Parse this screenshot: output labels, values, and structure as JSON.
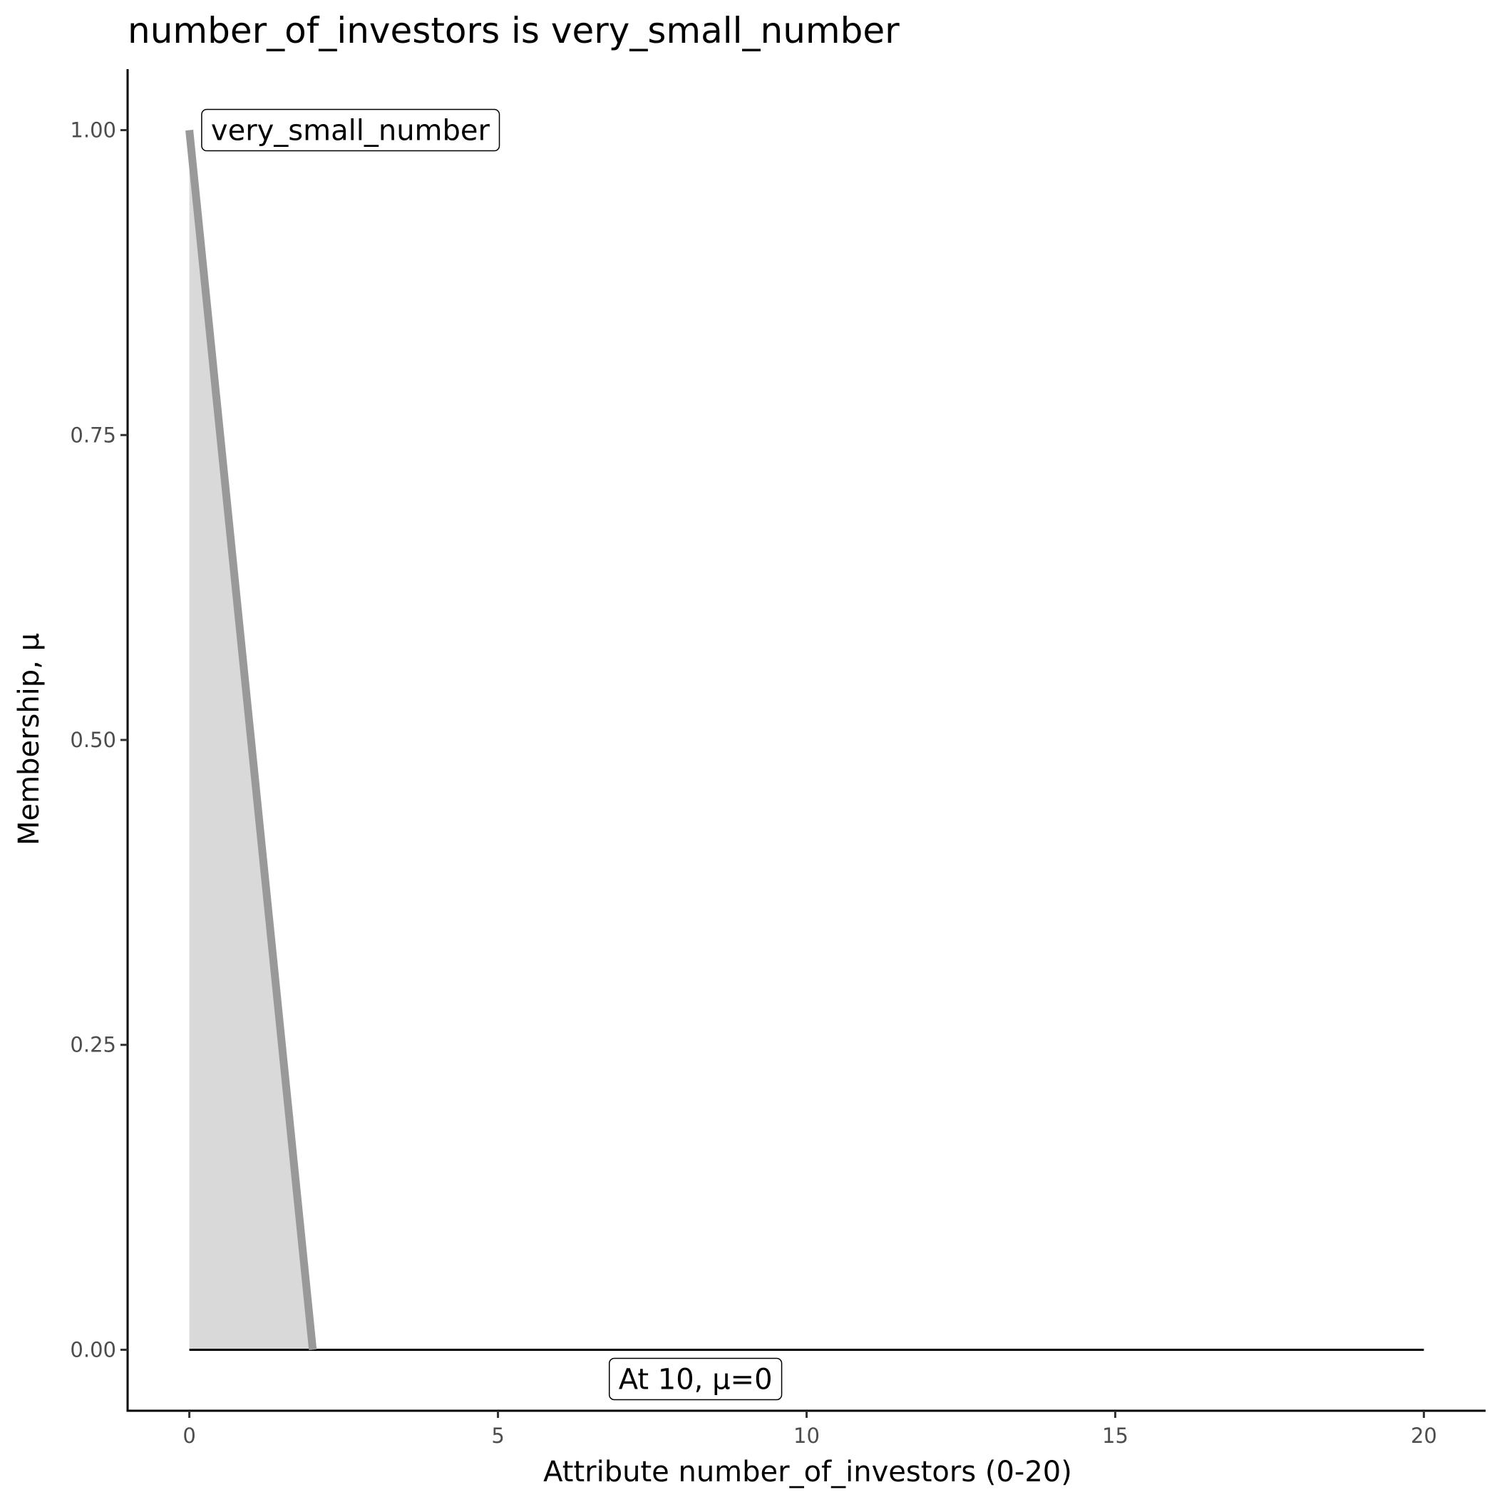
{
  "chart_data": {
    "type": "area",
    "title": "number_of_investors is very_small_number",
    "xlabel": "Attribute number_of_investors (0-20)",
    "ylabel": "Membership, μ",
    "xlim": [
      -1,
      21
    ],
    "ylim": [
      -0.05,
      1.05
    ],
    "xticks": [
      0,
      5,
      10,
      15,
      20
    ],
    "xtick_labels": [
      "0",
      "5",
      "10",
      "15",
      "20"
    ],
    "yticks": [
      0,
      0.25,
      0.5,
      0.75,
      1
    ],
    "ytick_labels": [
      "0.00",
      "0.25",
      "0.50",
      "0.75",
      "1.00"
    ],
    "grid": false,
    "series": [
      {
        "x": [
          0,
          2
        ],
        "y": [
          1,
          0
        ],
        "color": "#999999",
        "fill": "#d9d9d9"
      }
    ],
    "baseline": {
      "x": [
        0,
        20
      ],
      "y": [
        0,
        0
      ],
      "color": "#000000"
    },
    "annotations": [
      {
        "text": "very_small_number",
        "x": 0.2,
        "y": 1.0,
        "align": "left"
      },
      {
        "text": "At 10, μ=0",
        "x": 8.2,
        "y": -0.024,
        "align": "center"
      }
    ]
  }
}
